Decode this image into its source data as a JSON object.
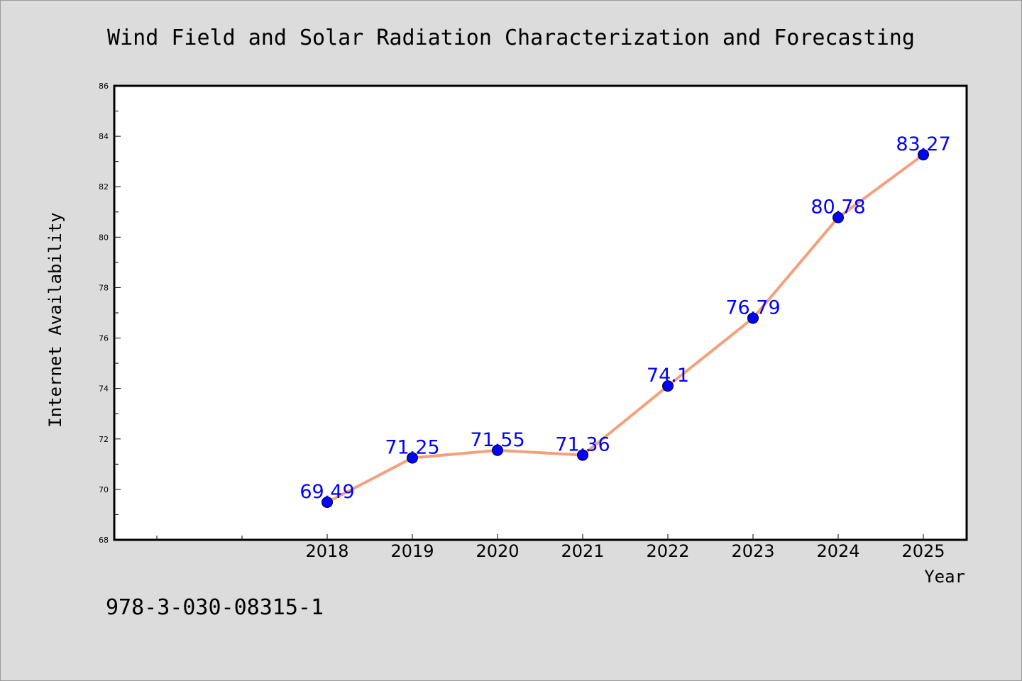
{
  "chart_data": {
    "type": "line",
    "title": "Wind Field and Solar Radiation Characterization and Forecasting",
    "xlabel": "Year",
    "ylabel": "Internet Availability",
    "categories": [
      "2018",
      "2019",
      "2020",
      "2021",
      "2022",
      "2023",
      "2024",
      "2025"
    ],
    "series": [
      {
        "values": [
          69.49,
          71.25,
          71.55,
          71.36,
          74.1,
          76.79,
          80.78,
          83.27
        ],
        "data_labels": [
          "69.49",
          "71.25",
          "71.55",
          "71.36",
          "74.1",
          "76.79",
          "80.78",
          "83.27"
        ],
        "line_color": "#f4a07c",
        "marker_color": "#0000ff",
        "label_color": "#0000ff"
      }
    ],
    "ylim": [
      68,
      86
    ],
    "yticks": [
      "68",
      "70",
      "72",
      "74",
      "76",
      "78",
      "80",
      "82",
      "84",
      "86"
    ],
    "grid": false,
    "legend": "none"
  },
  "footer": {
    "isbn": "978-3-030-08315-1"
  },
  "colors": {
    "background": "#dcdcdc",
    "plot_background": "#ffffff",
    "axis": "#000000"
  }
}
